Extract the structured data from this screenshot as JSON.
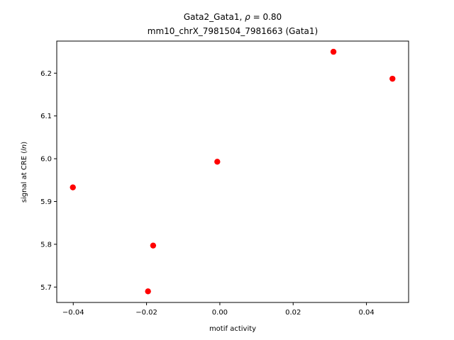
{
  "chart_data": {
    "type": "scatter",
    "title_line1_prefix": "Gata2_Gata1, ",
    "title_line1_rho": "ρ",
    "title_line1_suffix": " = 0.80",
    "title_line2": "mm10_chrX_7981504_7981663 (Gata1)",
    "xlabel": "motif activity",
    "ylabel_prefix": "signal at CRE (",
    "ylabel_italic": "ln",
    "ylabel_suffix": ")",
    "xlim": [
      -0.0445,
      0.0515
    ],
    "ylim": [
      5.664,
      6.275
    ],
    "x_ticks": [
      -0.04,
      -0.02,
      0.0,
      0.02,
      0.04
    ],
    "x_tick_labels": [
      "−0.04",
      "−0.02",
      "0.00",
      "0.02",
      "0.04"
    ],
    "y_ticks": [
      5.7,
      5.8,
      5.9,
      6.0,
      6.1,
      6.2
    ],
    "y_tick_labels": [
      "5.7",
      "5.8",
      "5.9",
      "6.0",
      "6.1",
      "6.2"
    ],
    "marker_color": "#ff0000",
    "points": [
      {
        "x": -0.0401,
        "y": 5.933
      },
      {
        "x": -0.0196,
        "y": 5.69
      },
      {
        "x": -0.0182,
        "y": 5.797
      },
      {
        "x": -0.0007,
        "y": 5.993
      },
      {
        "x": 0.031,
        "y": 6.25
      },
      {
        "x": 0.0471,
        "y": 6.187
      }
    ],
    "grid": false,
    "legend": "none"
  }
}
